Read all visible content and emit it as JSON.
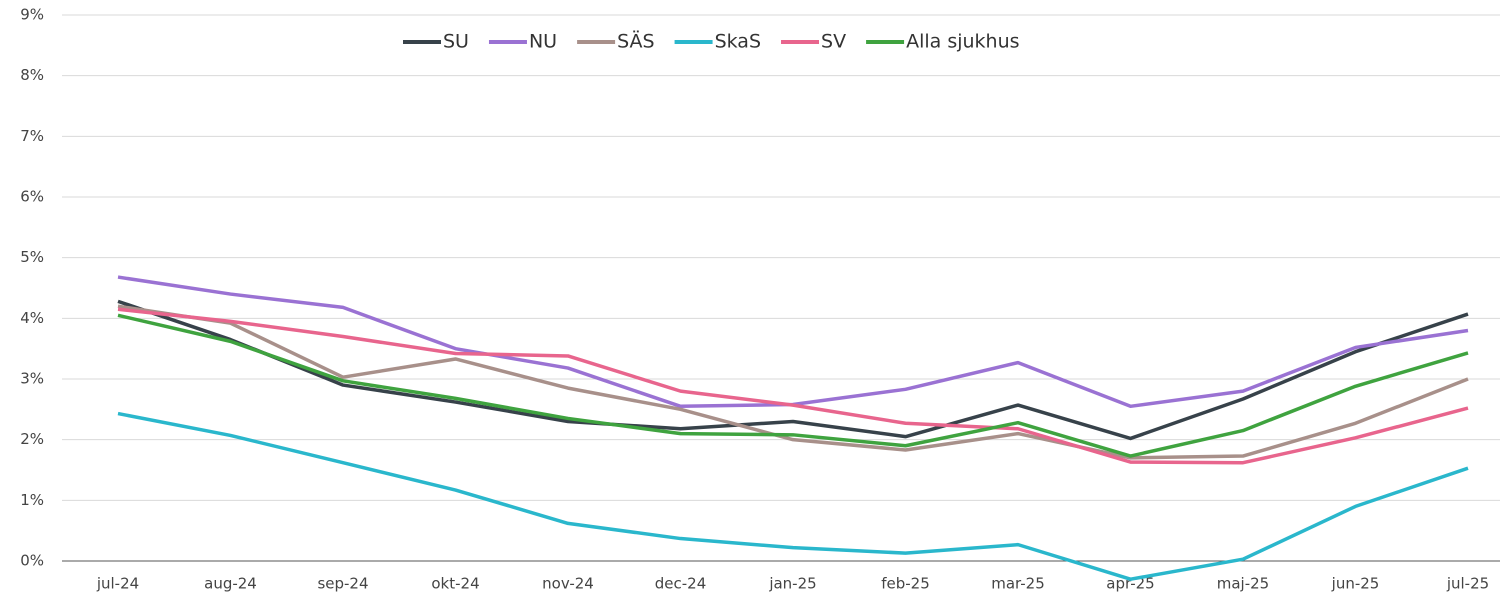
{
  "chart_data": {
    "type": "line",
    "categories": [
      "jul-24",
      "aug-24",
      "sep-24",
      "okt-24",
      "nov-24",
      "dec-24",
      "jan-25",
      "feb-25",
      "mar-25",
      "apr-25",
      "maj-25",
      "jun-25",
      "jul-25"
    ],
    "series": [
      {
        "name": "SU",
        "color": "#37424a",
        "values": [
          4.28,
          3.65,
          2.9,
          2.62,
          2.3,
          2.18,
          2.3,
          2.05,
          2.57,
          2.02,
          2.67,
          3.45,
          4.07
        ]
      },
      {
        "name": "NU",
        "color": "#9a72d3",
        "values": [
          4.68,
          4.4,
          4.18,
          3.5,
          3.18,
          2.55,
          2.58,
          2.83,
          3.27,
          2.55,
          2.8,
          3.52,
          3.8
        ]
      },
      {
        "name": "SÄS",
        "color": "#a8908a",
        "values": [
          4.2,
          3.92,
          3.03,
          3.33,
          2.85,
          2.5,
          2.0,
          1.83,
          2.1,
          1.7,
          1.73,
          2.27,
          3.0
        ]
      },
      {
        "name": "SkaS",
        "color": "#2ab7cc",
        "values": [
          2.43,
          2.07,
          1.62,
          1.17,
          0.62,
          0.37,
          0.22,
          0.13,
          0.27,
          -0.3,
          0.03,
          0.9,
          1.53
        ]
      },
      {
        "name": "SV",
        "color": "#e8658d",
        "values": [
          4.15,
          3.95,
          3.7,
          3.42,
          3.38,
          2.8,
          2.57,
          2.27,
          2.18,
          1.63,
          1.62,
          2.03,
          2.52
        ]
      },
      {
        "name": "Alla sjukhus",
        "color": "#3fa33f",
        "values": [
          4.05,
          3.62,
          2.97,
          2.68,
          2.35,
          2.1,
          2.08,
          1.9,
          2.28,
          1.73,
          2.15,
          2.88,
          3.43
        ]
      }
    ],
    "ylim": [
      0,
      9
    ],
    "yticks": [
      {
        "value": 0,
        "label": "0%"
      },
      {
        "value": 1,
        "label": "1%"
      },
      {
        "value": 2,
        "label": "2%"
      },
      {
        "value": 3,
        "label": "3%"
      },
      {
        "value": 4,
        "label": "4%"
      },
      {
        "value": 5,
        "label": "5%"
      },
      {
        "value": 6,
        "label": "6%"
      },
      {
        "value": 7,
        "label": "7%"
      },
      {
        "value": 8,
        "label": "8%"
      },
      {
        "value": 9,
        "label": "9%"
      }
    ],
    "grid": true,
    "legend": "top"
  }
}
